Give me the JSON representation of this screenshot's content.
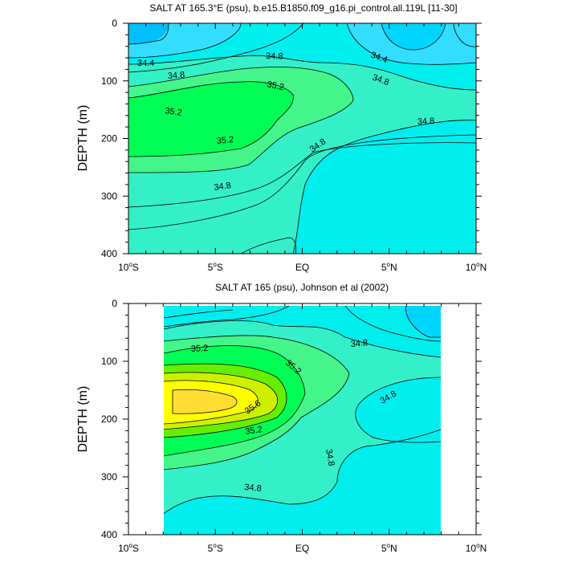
{
  "chart_data": [
    {
      "type": "contour",
      "title": "SALT AT 165.3°E (psu), b.e15.B1850.f09_g16.pi_control.all.119L [11-30]",
      "ylabel": "DEPTH (m)",
      "xlabel": "",
      "xlim": [
        -10,
        10
      ],
      "ylim": [
        0,
        400
      ],
      "y_inverted": true,
      "xticks": [
        {
          "value": -10,
          "label": "10°S"
        },
        {
          "value": -5,
          "label": "5°S"
        },
        {
          "value": 0,
          "label": "EQ"
        },
        {
          "value": 5,
          "label": "5°N"
        },
        {
          "value": 10,
          "label": "10°N"
        }
      ],
      "yticks": [
        0,
        100,
        200,
        300,
        400
      ],
      "contour_labels": [
        "34.4",
        "34.8",
        "35.2",
        "35.2",
        "35.2",
        "34.4",
        "34.8",
        "34.8",
        "34.8",
        "34.8",
        "34.8"
      ],
      "colors": {
        "s34_2": "#00bfff",
        "s34_4": "#33ddff",
        "s34_6": "#00eeee",
        "s34_8": "#33f0c8",
        "s35_0": "#44f58a",
        "s35_2": "#00ff55"
      }
    },
    {
      "type": "contour",
      "title": "SALT AT 165 (psu), Johnson et al (2002)",
      "ylabel": "DEPTH (m)",
      "xlabel": "",
      "xlim": [
        -10,
        10
      ],
      "ylim": [
        0,
        400
      ],
      "y_inverted": true,
      "xticks": [
        {
          "value": -10,
          "label": "10°S"
        },
        {
          "value": -5,
          "label": "5°S"
        },
        {
          "value": 0,
          "label": "EQ"
        },
        {
          "value": 5,
          "label": "5°N"
        },
        {
          "value": 10,
          "label": "10°N"
        }
      ],
      "yticks": [
        0,
        100,
        200,
        300,
        400
      ],
      "contour_labels": [
        "35.2",
        "35.2",
        "35.6",
        "35.2",
        "34.8",
        "34.8",
        "34.8",
        "34.8"
      ],
      "colors": {
        "s34_4": "#00d5ff",
        "s34_6": "#00eeee",
        "s34_8": "#33f0c8",
        "s35_0": "#44f58a",
        "s35_2": "#00ff55",
        "s35_4": "#66ee00",
        "s35_6": "#ccf000",
        "s35_8": "#ffff00",
        "s36_0": "#ffdd33"
      }
    }
  ]
}
